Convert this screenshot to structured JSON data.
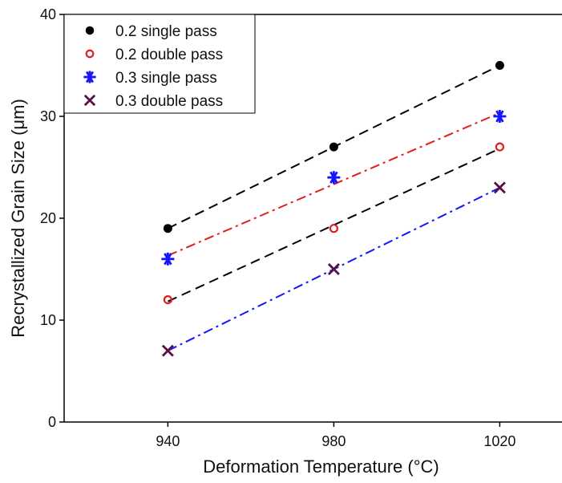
{
  "chart_data": {
    "type": "scatter",
    "title": "",
    "xlabel": "Deformation Temperature (°C)",
    "ylabel": "Recrystallized Grain Size (μm)",
    "xlim": [
      915,
      1035
    ],
    "ylim": [
      0,
      40
    ],
    "xticks": [
      940,
      980,
      1020
    ],
    "yticks": [
      0,
      10,
      20,
      30,
      40
    ],
    "grid": false,
    "legend_position": "top-left",
    "series": [
      {
        "name": "0.2 single pass",
        "marker": "filled-circle",
        "color": "#000000",
        "fit_color": "#000000",
        "fit_style": "dashed",
        "x": [
          940,
          980,
          1020
        ],
        "y": [
          19,
          27,
          35
        ]
      },
      {
        "name": "0.2 double pass",
        "marker": "open-circle",
        "color": "#e11d1d",
        "fit_color": "#000000",
        "fit_style": "dashed",
        "x": [
          940,
          980,
          1020
        ],
        "y": [
          12,
          19,
          27
        ]
      },
      {
        "name": "0.3 single pass",
        "marker": "asterisk",
        "color": "#1414ff",
        "fit_color": "#e11d1d",
        "fit_style": "dash-dot",
        "x": [
          940,
          980,
          1020
        ],
        "y": [
          16,
          24,
          30
        ]
      },
      {
        "name": "0.3 double pass",
        "marker": "x",
        "color": "#5a0f4a",
        "fit_color": "#1414ff",
        "fit_style": "dash-dot",
        "x": [
          940,
          980,
          1020
        ],
        "y": [
          7,
          15,
          23
        ]
      }
    ]
  }
}
